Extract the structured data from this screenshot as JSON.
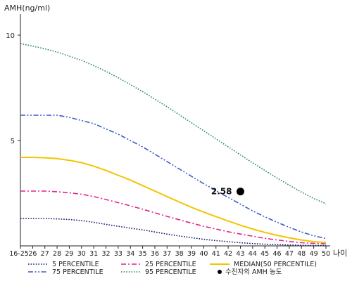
{
  "chart_data": {
    "type": "line",
    "ylabel": "AMH(ng/ml)",
    "xlabel": "나이",
    "ylim": [
      0,
      11
    ],
    "yticks": [
      5,
      10
    ],
    "x_categories": [
      "16-25",
      "26",
      "27",
      "28",
      "29",
      "30",
      "31",
      "32",
      "33",
      "34",
      "35",
      "36",
      "37",
      "38",
      "39",
      "40",
      "41",
      "42",
      "43",
      "44",
      "45",
      "46",
      "47",
      "48",
      "49",
      "50"
    ],
    "x_ages": [
      25,
      26,
      27,
      28,
      29,
      30,
      31,
      32,
      33,
      34,
      35,
      36,
      37,
      38,
      39,
      40,
      41,
      42,
      43,
      44,
      45,
      46,
      47,
      48,
      49,
      50
    ],
    "series": [
      {
        "name": "5 PERCENTILE",
        "color": "#1a1a6e",
        "dash": "dotted",
        "values": [
          1.3,
          1.3,
          1.3,
          1.28,
          1.25,
          1.2,
          1.12,
          1.02,
          0.93,
          0.84,
          0.76,
          0.66,
          0.56,
          0.47,
          0.39,
          0.31,
          0.25,
          0.2,
          0.15,
          0.11,
          0.08,
          0.06,
          0.04,
          0.03,
          0.02,
          0.02
        ]
      },
      {
        "name": "25 PERCENTILE",
        "color": "#e0248a",
        "dash": "dashdot",
        "values": [
          2.6,
          2.6,
          2.6,
          2.57,
          2.52,
          2.45,
          2.34,
          2.2,
          2.05,
          1.9,
          1.74,
          1.57,
          1.4,
          1.24,
          1.08,
          0.93,
          0.8,
          0.67,
          0.56,
          0.46,
          0.36,
          0.28,
          0.21,
          0.15,
          0.12,
          0.1
        ]
      },
      {
        "name": "MEDIAN(50 PERCENTILE)",
        "color": "#f2c500",
        "dash": "solid",
        "values": [
          4.2,
          4.2,
          4.18,
          4.14,
          4.06,
          3.95,
          3.78,
          3.58,
          3.35,
          3.12,
          2.86,
          2.6,
          2.34,
          2.08,
          1.83,
          1.6,
          1.39,
          1.18,
          0.98,
          0.8,
          0.64,
          0.5,
          0.38,
          0.28,
          0.2,
          0.16
        ]
      },
      {
        "name": "75 PERCENTILE",
        "color": "#3a5bc8",
        "dash": "dashdotdot",
        "values": [
          6.2,
          6.2,
          6.2,
          6.2,
          6.1,
          5.95,
          5.8,
          5.55,
          5.3,
          5.0,
          4.7,
          4.35,
          4.0,
          3.65,
          3.3,
          2.95,
          2.62,
          2.3,
          1.98,
          1.66,
          1.38,
          1.12,
          0.88,
          0.66,
          0.48,
          0.35
        ]
      },
      {
        "name": "95 PERCENTILE",
        "color": "#2e8b57",
        "dash": "dotted",
        "values": [
          9.6,
          9.48,
          9.35,
          9.2,
          9.0,
          8.8,
          8.55,
          8.28,
          7.98,
          7.65,
          7.32,
          6.96,
          6.6,
          6.22,
          5.84,
          5.46,
          5.08,
          4.7,
          4.32,
          3.94,
          3.58,
          3.22,
          2.88,
          2.55,
          2.25,
          2.0
        ]
      }
    ],
    "marker": {
      "name": "수진자의 AMH 농도",
      "age": 43,
      "value": 2.58,
      "label": "2.58",
      "color": "#000000"
    },
    "legend_position": "bottom"
  }
}
